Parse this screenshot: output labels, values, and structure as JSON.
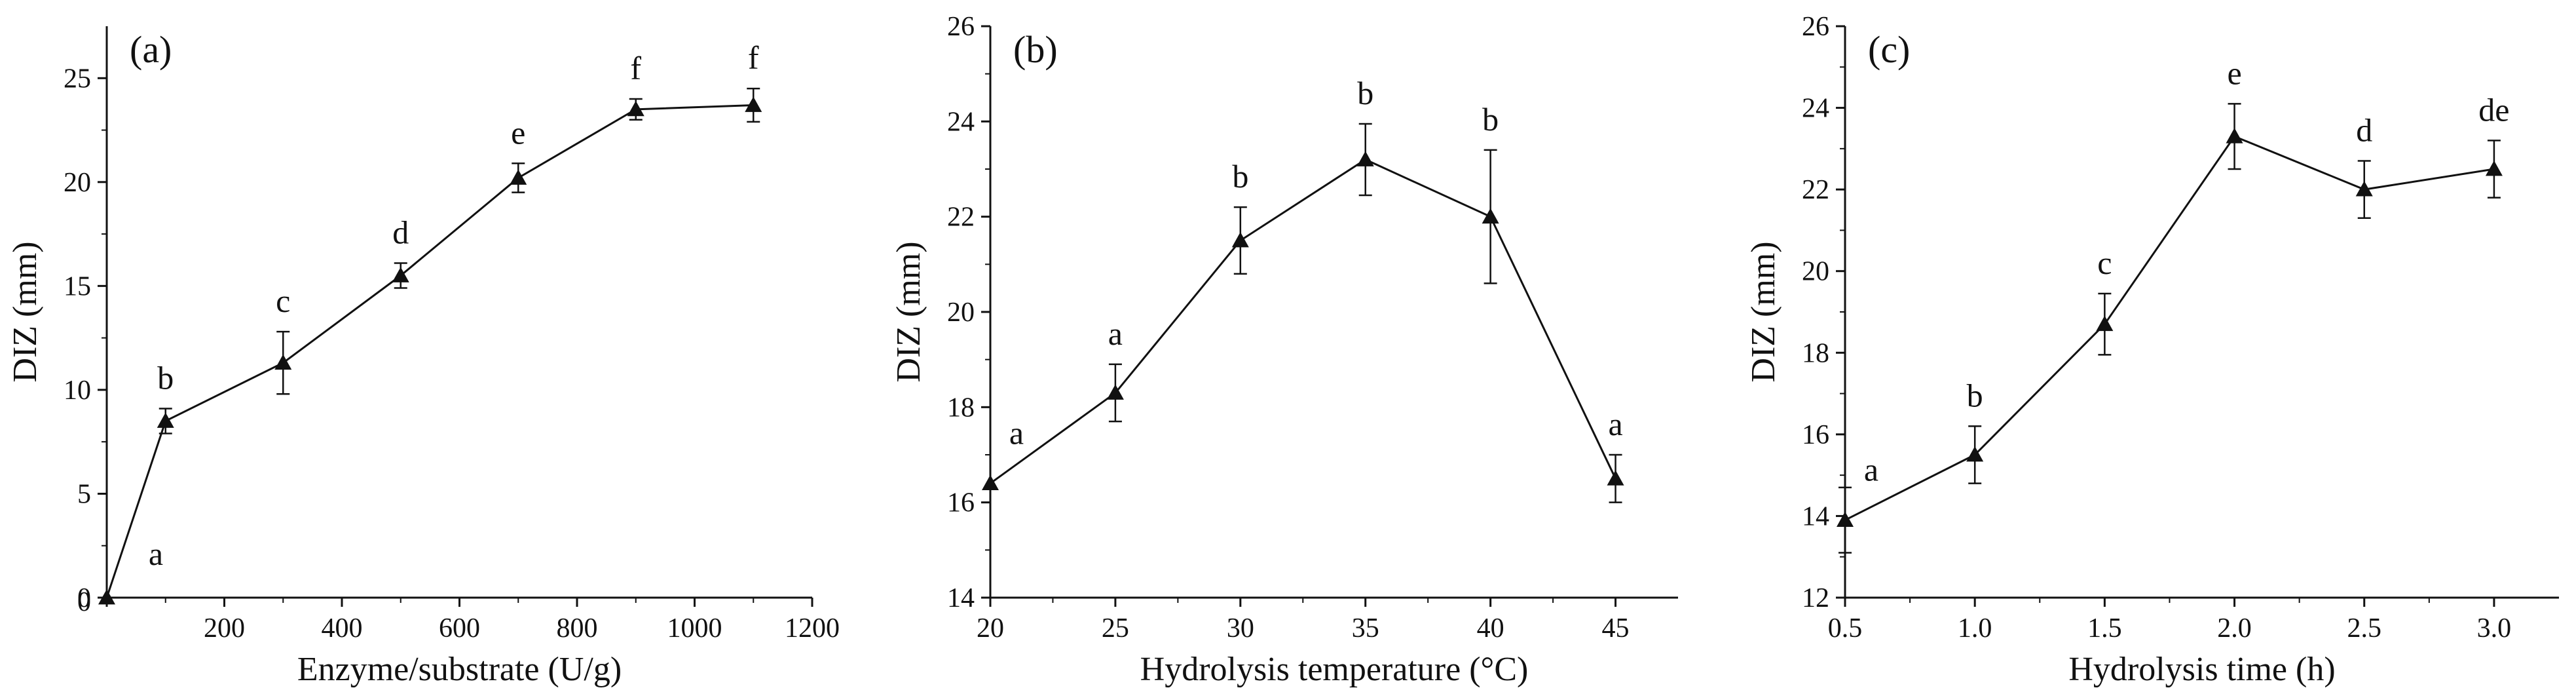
{
  "chart_data": [
    {
      "type": "line",
      "panel_label": "(a)",
      "xlabel": "Enzyme/substrate (U/g)",
      "ylabel": "DIZ (mm)",
      "xlim": [
        0,
        1200
      ],
      "ylim": [
        0,
        27.5
      ],
      "x_ticks": [
        0,
        200,
        400,
        600,
        800,
        1000,
        1200
      ],
      "y_ticks": [
        0,
        5,
        10,
        15,
        20,
        25
      ],
      "x_tick_labels": [
        "",
        "200",
        "400",
        "600",
        "800",
        "1000",
        "1200"
      ],
      "y_tick_labels": [
        "0",
        "5",
        "10",
        "15",
        "20",
        "25"
      ],
      "origin_label": "0",
      "grid": false,
      "series": [
        {
          "x": [
            0,
            100,
            300,
            500,
            700,
            900,
            1100
          ],
          "values": [
            0,
            8.5,
            11.3,
            15.5,
            20.2,
            23.5,
            23.7
          ],
          "error": [
            0,
            0.6,
            1.5,
            0.6,
            0.7,
            0.5,
            0.8
          ],
          "letters": [
            "a",
            "b",
            "c",
            "d",
            "e",
            "f",
            "f"
          ]
        }
      ]
    },
    {
      "type": "line",
      "panel_label": "(b)",
      "xlabel": "Hydrolysis temperature (°C)",
      "ylabel": "DIZ (mm)",
      "xlim": [
        20,
        47.5
      ],
      "ylim": [
        14,
        26
      ],
      "x_ticks": [
        20,
        25,
        30,
        35,
        40,
        45
      ],
      "y_ticks": [
        14,
        16,
        18,
        20,
        22,
        24,
        26
      ],
      "x_tick_labels": [
        "20",
        "25",
        "30",
        "35",
        "40",
        "45"
      ],
      "y_tick_labels": [
        "14",
        "16",
        "18",
        "20",
        "22",
        "24",
        "26"
      ],
      "grid": false,
      "series": [
        {
          "x": [
            20,
            25,
            30,
            35,
            40,
            45
          ],
          "values": [
            16.4,
            18.3,
            21.5,
            23.2,
            22.0,
            16.5
          ],
          "error": [
            0,
            0.6,
            0.7,
            0.75,
            1.4,
            0.5
          ],
          "letters": [
            "a",
            "a",
            "b",
            "b",
            "b",
            "a"
          ]
        }
      ]
    },
    {
      "type": "line",
      "panel_label": "(c)",
      "xlabel": "Hydrolysis time (h)",
      "ylabel": "DIZ (mm)",
      "xlim": [
        0.5,
        3.25
      ],
      "ylim": [
        12,
        26
      ],
      "x_ticks": [
        0.5,
        1.0,
        1.5,
        2.0,
        2.5,
        3.0
      ],
      "y_ticks": [
        12,
        14,
        16,
        18,
        20,
        22,
        24,
        26
      ],
      "x_tick_labels": [
        "0.5",
        "1.0",
        "1.5",
        "2.0",
        "2.5",
        "3.0"
      ],
      "y_tick_labels": [
        "12",
        "14",
        "16",
        "18",
        "20",
        "22",
        "24",
        "26"
      ],
      "grid": false,
      "series": [
        {
          "x": [
            0.5,
            1.0,
            1.5,
            2.0,
            2.5,
            3.0
          ],
          "values": [
            13.9,
            15.5,
            18.7,
            23.3,
            22.0,
            22.5
          ],
          "error": [
            0.8,
            0.7,
            0.75,
            0.8,
            0.7,
            0.7
          ],
          "letters": [
            "a",
            "b",
            "c",
            "e",
            "d",
            "de"
          ]
        }
      ]
    }
  ]
}
